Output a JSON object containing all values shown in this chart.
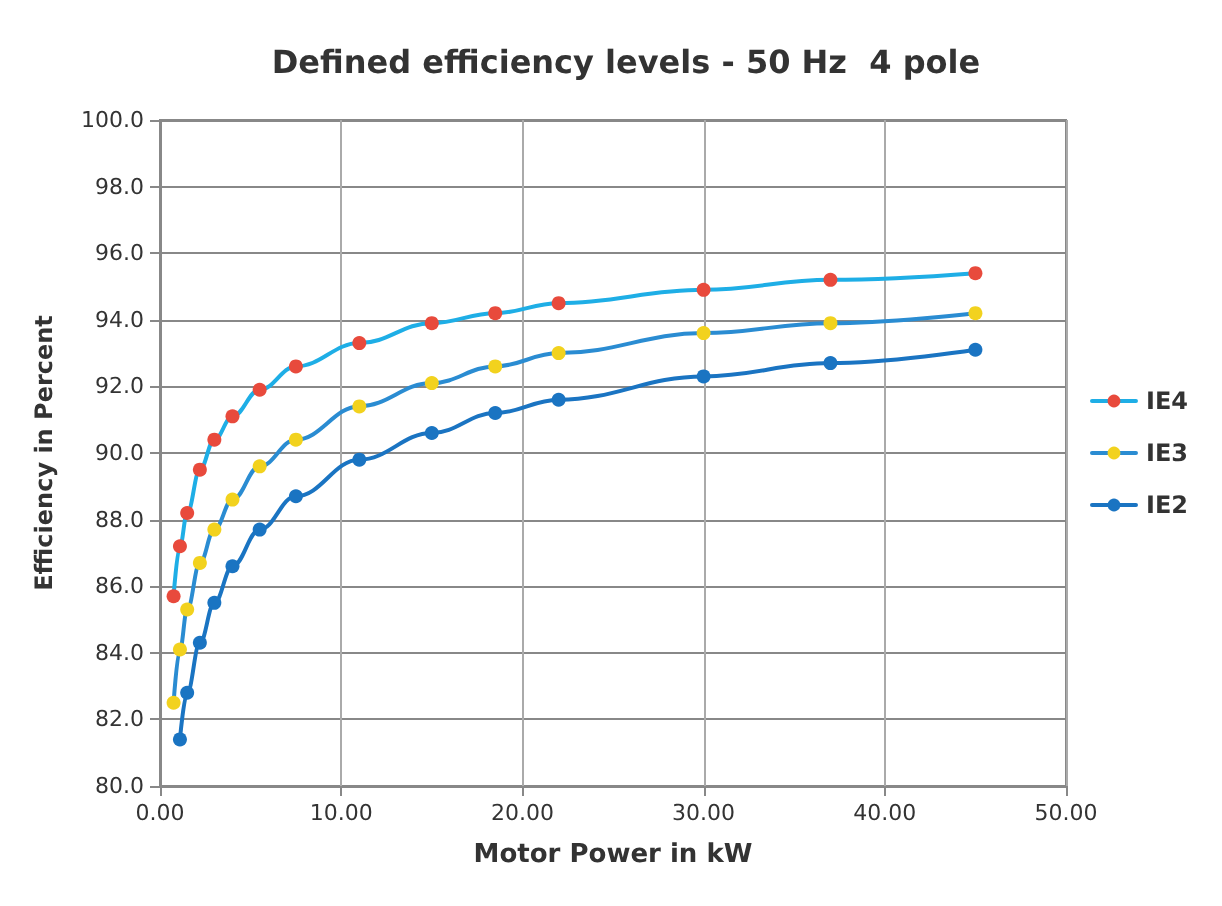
{
  "chart_data": {
    "type": "line",
    "title": "Defined efficiency levels - 50 Hz  4 pole",
    "xlabel": "Motor Power in kW",
    "ylabel": "Efficiency in Percent",
    "x": [
      0.75,
      1.1,
      1.5,
      2.2,
      3,
      4,
      5.5,
      7.5,
      11,
      15,
      18.5,
      22,
      30,
      37,
      45
    ],
    "series": [
      {
        "name": "IE4",
        "color": "#1eaee6",
        "colors": [
          "#e84a3c",
          "#e84a3c",
          "#e84a3c",
          "#e84a3c",
          "#e84a3c",
          "#e84a3c",
          "#e84a3c",
          "#e84a3c",
          "#e84a3c",
          "#e84a3c",
          "#e84a3c",
          "#e84a3c",
          "#e84a3c",
          "#e84a3c",
          "#e84a3c"
        ],
        "values": [
          85.7,
          87.2,
          88.2,
          89.5,
          90.4,
          91.1,
          91.9,
          92.6,
          93.3,
          93.9,
          94.2,
          94.5,
          94.9,
          95.2,
          95.4
        ]
      },
      {
        "name": "IE3",
        "color": "#2a8cd2",
        "colors": [
          "#f2d21e",
          "#f2d21e",
          "#f2d21e",
          "#f2d21e",
          "#f2d21e",
          "#f2d21e",
          "#f2d21e",
          "#f2d21e",
          "#f2d21e",
          "#f2d21e",
          "#f2d21e",
          "#f2d21e",
          "#f2d21e",
          "#f2d21e",
          "#f2d21e"
        ],
        "values": [
          82.5,
          84.1,
          85.3,
          86.7,
          87.7,
          88.6,
          89.6,
          90.4,
          91.4,
          92.1,
          92.6,
          93.0,
          93.6,
          93.9,
          94.2
        ]
      },
      {
        "name": "IE2",
        "color": "#1a74c2",
        "colors": [
          "#1a74c2",
          "#1a74c2",
          "#1a74c2",
          "#1a74c2",
          "#1a74c2",
          "#1a74c2",
          "#1a74c2",
          "#1a74c2",
          "#1a74c2",
          "#1a74c2",
          "#1a74c2",
          "#1a74c2",
          "#1a74c2",
          "#1a74c2",
          "#1a74c2"
        ],
        "values": [
          null,
          81.4,
          82.8,
          84.3,
          85.5,
          86.6,
          87.7,
          88.7,
          89.8,
          90.6,
          91.2,
          91.6,
          92.3,
          92.7,
          93.1
        ]
      }
    ],
    "xlim": [
      0,
      50
    ],
    "xticks": [
      {
        "value": 0,
        "label": "0.00"
      },
      {
        "value": 10,
        "label": "10.00"
      },
      {
        "value": 20,
        "label": "20.00"
      },
      {
        "value": 30,
        "label": "30.00"
      },
      {
        "value": 40,
        "label": "40.00"
      },
      {
        "value": 50,
        "label": "50.00"
      }
    ],
    "ylim": [
      80,
      100
    ],
    "yticks": [
      {
        "value": 80,
        "label": "80.0"
      },
      {
        "value": 82,
        "label": "82.0"
      },
      {
        "value": 84,
        "label": "84.0"
      },
      {
        "value": 86,
        "label": "86.0"
      },
      {
        "value": 88,
        "label": "88.0"
      },
      {
        "value": 90,
        "label": "90.0"
      },
      {
        "value": 92,
        "label": "92.0"
      },
      {
        "value": 94,
        "label": "94.0"
      },
      {
        "value": 96,
        "label": "96.0"
      },
      {
        "value": 98,
        "label": "98.0"
      },
      {
        "value": 100,
        "label": "100.0"
      }
    ],
    "grid": true,
    "legend": "right",
    "marker": "circle",
    "line_style": "solid"
  }
}
